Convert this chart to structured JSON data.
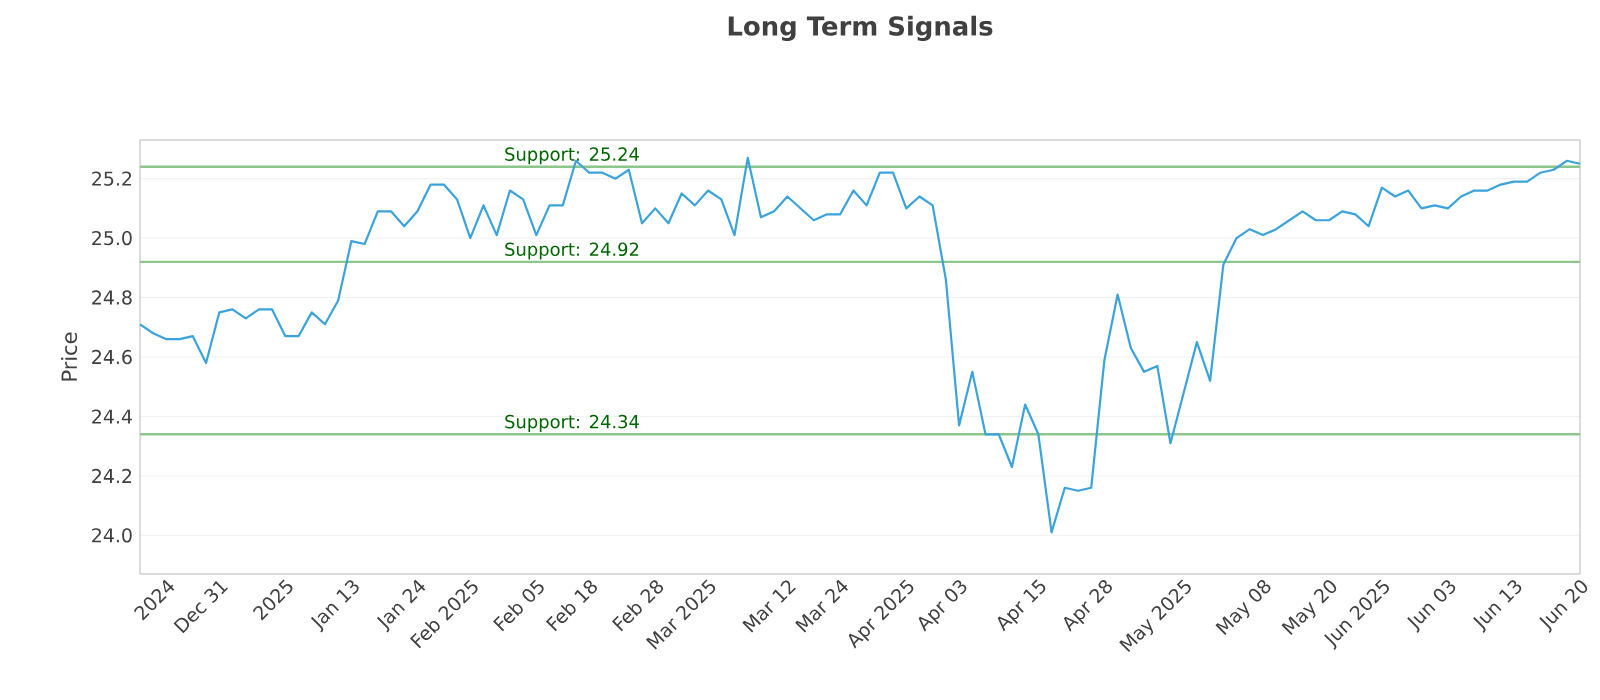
{
  "chart_data": {
    "type": "line",
    "title": "Long Term Signals",
    "ylabel": "Price",
    "categories": [
      null,
      null,
      "2024",
      null,
      null,
      null,
      "Dec 31",
      null,
      null,
      null,
      null,
      "2025",
      null,
      null,
      null,
      null,
      "Jan 13",
      null,
      null,
      null,
      null,
      "Jan 24",
      null,
      null,
      null,
      "Feb 2025",
      null,
      null,
      null,
      null,
      "Feb 05",
      null,
      null,
      null,
      "Feb 18",
      null,
      null,
      null,
      null,
      "Feb 28",
      null,
      null,
      null,
      "Mar 2025",
      null,
      null,
      null,
      null,
      null,
      "Mar 12",
      null,
      null,
      null,
      "Mar 24",
      null,
      null,
      null,
      null,
      "Apr 2025",
      null,
      null,
      null,
      "Apr 03",
      null,
      null,
      null,
      null,
      null,
      "Apr 15",
      null,
      null,
      null,
      null,
      "Apr 28",
      null,
      null,
      null,
      null,
      null,
      "May 2025",
      null,
      null,
      null,
      null,
      null,
      "May 08",
      null,
      null,
      null,
      null,
      "May 20",
      null,
      null,
      null,
      "Jun 2025",
      null,
      null,
      null,
      null,
      "Jun 03",
      null,
      null,
      null,
      null,
      "Jun 13",
      null,
      null,
      null,
      null,
      "Jun 20"
    ],
    "series": [
      {
        "color": "#3aa3dc",
        "values": [
          24.71,
          24.68,
          24.66,
          24.66,
          24.67,
          24.58,
          24.75,
          24.76,
          24.73,
          24.76,
          24.76,
          24.67,
          24.67,
          24.75,
          24.71,
          24.79,
          24.99,
          24.98,
          25.09,
          25.09,
          25.04,
          25.09,
          25.18,
          25.18,
          25.13,
          25.0,
          25.11,
          25.01,
          25.16,
          25.13,
          25.01,
          25.11,
          25.11,
          25.26,
          25.22,
          25.22,
          25.2,
          25.23,
          25.05,
          25.1,
          25.05,
          25.15,
          25.11,
          25.16,
          25.13,
          25.01,
          25.27,
          25.07,
          25.09,
          25.14,
          25.1,
          25.06,
          25.08,
          25.08,
          25.16,
          25.11,
          25.22,
          25.22,
          25.1,
          25.14,
          25.11,
          24.86,
          24.37,
          24.55,
          24.34,
          24.34,
          24.23,
          24.44,
          24.34,
          24.01,
          24.16,
          24.15,
          24.16,
          24.59,
          24.81,
          24.63,
          24.55,
          24.57,
          24.31,
          24.48,
          24.65,
          24.52,
          24.91,
          25.0,
          25.03,
          25.01,
          25.03,
          25.06,
          25.09,
          25.06,
          25.06,
          25.09,
          25.08,
          25.04,
          25.17,
          25.14,
          25.16,
          25.1,
          25.11,
          25.1,
          25.14,
          25.16,
          25.16,
          25.18,
          25.19,
          25.19,
          25.22,
          25.23,
          25.26,
          25.25
        ]
      }
    ],
    "ylim": [
      23.87,
      25.33
    ],
    "yticks": [
      {
        "value": 24.0,
        "label": "24.0"
      },
      {
        "value": 24.2,
        "label": "24.2"
      },
      {
        "value": 24.4,
        "label": "24.4"
      },
      {
        "value": 24.6,
        "label": "24.6"
      },
      {
        "value": 24.8,
        "label": "24.8"
      },
      {
        "value": 25.0,
        "label": "25.0"
      },
      {
        "value": 25.2,
        "label": "25.2"
      }
    ],
    "grid": "y",
    "marker": "none",
    "line_style": "solid",
    "ref_lines": [
      {
        "axis": "y",
        "value": 25.24,
        "label": "Support: 25.24",
        "color": "#8cc68c"
      },
      {
        "axis": "y",
        "value": 24.92,
        "label": "Support: 24.92",
        "color": "#8cc68c"
      },
      {
        "axis": "y",
        "value": 24.34,
        "label": "Support: 24.34",
        "color": "#8cc68c"
      }
    ]
  }
}
